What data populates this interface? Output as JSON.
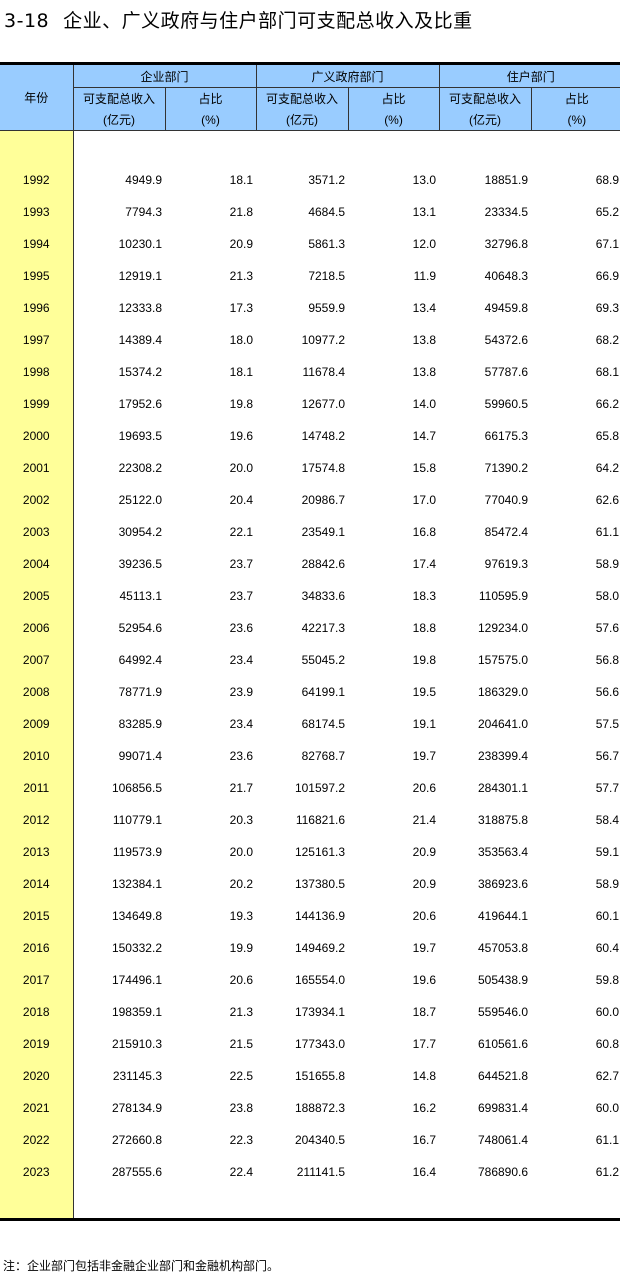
{
  "title": {
    "number": "3-18",
    "text": "企业、广义政府与住户部门可支配总收入及比重"
  },
  "header": {
    "year": "年份",
    "groups": [
      "企业部门",
      "广义政府部门",
      "住户部门"
    ],
    "income": "可支配总收入",
    "income_unit": "(亿元)",
    "share": "占比",
    "share_unit": "(%)"
  },
  "rows": [
    [
      "1992",
      "4949.9",
      "18.1",
      "3571.2",
      "13.0",
      "18851.9",
      "68.9"
    ],
    [
      "1993",
      "7794.3",
      "21.8",
      "4684.5",
      "13.1",
      "23334.5",
      "65.2"
    ],
    [
      "1994",
      "10230.1",
      "20.9",
      "5861.3",
      "12.0",
      "32796.8",
      "67.1"
    ],
    [
      "1995",
      "12919.1",
      "21.3",
      "7218.5",
      "11.9",
      "40648.3",
      "66.9"
    ],
    [
      "1996",
      "12333.8",
      "17.3",
      "9559.9",
      "13.4",
      "49459.8",
      "69.3"
    ],
    [
      "1997",
      "14389.4",
      "18.0",
      "10977.2",
      "13.8",
      "54372.6",
      "68.2"
    ],
    [
      "1998",
      "15374.2",
      "18.1",
      "11678.4",
      "13.8",
      "57787.6",
      "68.1"
    ],
    [
      "1999",
      "17952.6",
      "19.8",
      "12677.0",
      "14.0",
      "59960.5",
      "66.2"
    ],
    [
      "2000",
      "19693.5",
      "19.6",
      "14748.2",
      "14.7",
      "66175.3",
      "65.8"
    ],
    [
      "2001",
      "22308.2",
      "20.0",
      "17574.8",
      "15.8",
      "71390.2",
      "64.2"
    ],
    [
      "2002",
      "25122.0",
      "20.4",
      "20986.7",
      "17.0",
      "77040.9",
      "62.6"
    ],
    [
      "2003",
      "30954.2",
      "22.1",
      "23549.1",
      "16.8",
      "85472.4",
      "61.1"
    ],
    [
      "2004",
      "39236.5",
      "23.7",
      "28842.6",
      "17.4",
      "97619.3",
      "58.9"
    ],
    [
      "2005",
      "45113.1",
      "23.7",
      "34833.6",
      "18.3",
      "110595.9",
      "58.0"
    ],
    [
      "2006",
      "52954.6",
      "23.6",
      "42217.3",
      "18.8",
      "129234.0",
      "57.6"
    ],
    [
      "2007",
      "64992.4",
      "23.4",
      "55045.2",
      "19.8",
      "157575.0",
      "56.8"
    ],
    [
      "2008",
      "78771.9",
      "23.9",
      "64199.1",
      "19.5",
      "186329.0",
      "56.6"
    ],
    [
      "2009",
      "83285.9",
      "23.4",
      "68174.5",
      "19.1",
      "204641.0",
      "57.5"
    ],
    [
      "2010",
      "99071.4",
      "23.6",
      "82768.7",
      "19.7",
      "238399.4",
      "56.7"
    ],
    [
      "2011",
      "106856.5",
      "21.7",
      "101597.2",
      "20.6",
      "284301.1",
      "57.7"
    ],
    [
      "2012",
      "110779.1",
      "20.3",
      "116821.6",
      "21.4",
      "318875.8",
      "58.4"
    ],
    [
      "2013",
      "119573.9",
      "20.0",
      "125161.3",
      "20.9",
      "353563.4",
      "59.1"
    ],
    [
      "2014",
      "132384.1",
      "20.2",
      "137380.5",
      "20.9",
      "386923.6",
      "58.9"
    ],
    [
      "2015",
      "134649.8",
      "19.3",
      "144136.9",
      "20.6",
      "419644.1",
      "60.1"
    ],
    [
      "2016",
      "150332.2",
      "19.9",
      "149469.2",
      "19.7",
      "457053.8",
      "60.4"
    ],
    [
      "2017",
      "174496.1",
      "20.6",
      "165554.0",
      "19.6",
      "505438.9",
      "59.8"
    ],
    [
      "2018",
      "198359.1",
      "21.3",
      "173934.1",
      "18.7",
      "559546.0",
      "60.0"
    ],
    [
      "2019",
      "215910.3",
      "21.5",
      "177343.0",
      "17.7",
      "610561.6",
      "60.8"
    ],
    [
      "2020",
      "231145.3",
      "22.5",
      "151655.8",
      "14.8",
      "644521.8",
      "62.7"
    ],
    [
      "2021",
      "278134.9",
      "23.8",
      "188872.3",
      "16.2",
      "699831.4",
      "60.0"
    ],
    [
      "2022",
      "272660.8",
      "22.3",
      "204340.5",
      "16.7",
      "748061.4",
      "61.1"
    ],
    [
      "2023",
      "287555.6",
      "22.4",
      "211141.5",
      "16.4",
      "786890.6",
      "61.2"
    ]
  ],
  "note": "注：企业部门包括非金融企业部门和金融机构部门。",
  "colors": {
    "header_bg": "#99ccff",
    "year_bg": "#ffff99"
  }
}
